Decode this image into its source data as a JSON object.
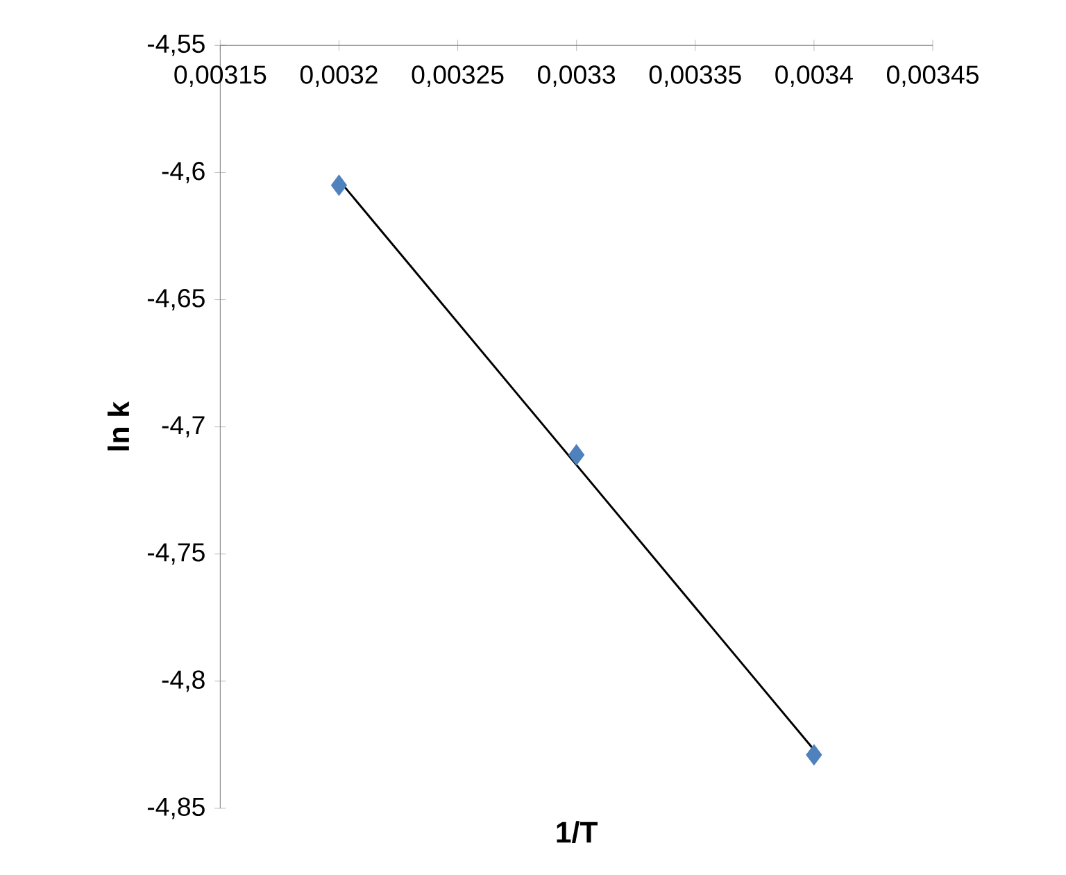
{
  "chart_data": {
    "type": "scatter",
    "xlabel": "1/T",
    "ylabel": "ln k",
    "series": [
      {
        "color": "#4f81bd",
        "marker": "diamond",
        "x": [
          0.0032,
          0.0033,
          0.0034
        ],
        "values": [
          -4.605,
          -4.711,
          -4.829
        ]
      },
      {
        "type": "line",
        "color": "#000000",
        "marker": "none",
        "line_style": "solid",
        "x": [
          0.0032,
          0.0034
        ],
        "values": [
          -4.603,
          -4.827
        ]
      }
    ],
    "xlim": [
      0.00315,
      0.00345
    ],
    "ylim": [
      -4.85,
      -4.55
    ],
    "xticks": [
      {
        "value": 0.00315,
        "label": "0,00315"
      },
      {
        "value": 0.0032,
        "label": "0,0032"
      },
      {
        "value": 0.00325,
        "label": "0,00325"
      },
      {
        "value": 0.0033,
        "label": "0,0033"
      },
      {
        "value": 0.00335,
        "label": "0,00335"
      },
      {
        "value": 0.0034,
        "label": "0,0034"
      },
      {
        "value": 0.00345,
        "label": "0,00345"
      }
    ],
    "yticks": [
      {
        "value": -4.85,
        "label": "-4,85"
      },
      {
        "value": -4.8,
        "label": "-4,8"
      },
      {
        "value": -4.75,
        "label": "-4,75"
      },
      {
        "value": -4.7,
        "label": "-4,7"
      },
      {
        "value": -4.65,
        "label": "-4,65"
      },
      {
        "value": -4.6,
        "label": "-4,6"
      },
      {
        "value": -4.55,
        "label": "-4,55"
      }
    ]
  }
}
